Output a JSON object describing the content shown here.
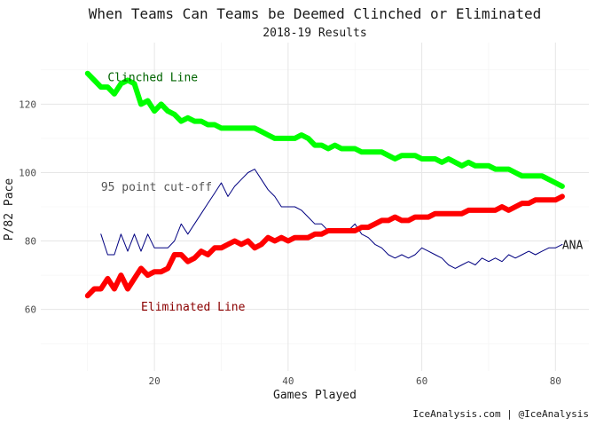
{
  "chart_data": {
    "type": "line",
    "title": "When Teams Can Teams be Deemed Clinched or Eliminated",
    "subtitle": "2018-19 Results",
    "xlabel": "Games Played",
    "ylabel": "P/82 Pace",
    "caption": "IceAnalysis.com | @IceAnalysis",
    "xlim": [
      3,
      85
    ],
    "ylim": [
      42,
      138
    ],
    "xticks": [
      20,
      40,
      60,
      80
    ],
    "yticks": [
      60,
      80,
      100,
      120
    ],
    "grid": true,
    "annotations": [
      {
        "text": "Clinched Line",
        "x": 13,
        "y": 128,
        "color": "#006400"
      },
      {
        "text": "95 point cut-off",
        "x": 12,
        "y": 96,
        "color": "#555555"
      },
      {
        "text": "Eliminated Line",
        "x": 18,
        "y": 61,
        "color": "#8b0000"
      },
      {
        "text": "ANA",
        "x": 81,
        "y": 79,
        "color": "#1a1a1a"
      }
    ],
    "series": [
      {
        "color": "#00ff00",
        "x": [
          10,
          11,
          12,
          13,
          14,
          15,
          16,
          17,
          18,
          19,
          20,
          21,
          22,
          23,
          24,
          25,
          26,
          27,
          28,
          29,
          30,
          31,
          32,
          33,
          34,
          35,
          36,
          37,
          38,
          39,
          40,
          41,
          42,
          43,
          44,
          45,
          46,
          47,
          48,
          49,
          50,
          51,
          52,
          53,
          54,
          55,
          56,
          57,
          58,
          59,
          60,
          61,
          62,
          63,
          64,
          65,
          66,
          67,
          68,
          69,
          70,
          71,
          72,
          73,
          74,
          75,
          76,
          77,
          78,
          79,
          80,
          81
        ],
        "values": [
          129,
          127,
          125,
          125,
          123,
          126,
          127,
          126,
          120,
          121,
          118,
          120,
          118,
          117,
          115,
          116,
          115,
          115,
          114,
          114,
          113,
          113,
          113,
          113,
          113,
          113,
          112,
          111,
          110,
          110,
          110,
          110,
          111,
          110,
          108,
          108,
          107,
          108,
          107,
          107,
          107,
          106,
          106,
          106,
          106,
          105,
          104,
          105,
          105,
          105,
          104,
          104,
          104,
          103,
          104,
          103,
          102,
          103,
          102,
          102,
          102,
          101,
          101,
          101,
          100,
          99,
          99,
          99,
          99,
          98,
          97,
          96
        ]
      },
      {
        "color": "#000080",
        "x": [
          12,
          13,
          14,
          15,
          16,
          17,
          18,
          19,
          20,
          21,
          22,
          23,
          24,
          25,
          26,
          27,
          28,
          29,
          30,
          31,
          32,
          33,
          34,
          35,
          36,
          37,
          38,
          39,
          40,
          41,
          42,
          43,
          44,
          45,
          46,
          47,
          48,
          49,
          50,
          51,
          52,
          53,
          54,
          55,
          56,
          57,
          58,
          59,
          60,
          61,
          62,
          63,
          64,
          65,
          66,
          67,
          68,
          69,
          70,
          71,
          72,
          73,
          74,
          75,
          76,
          77,
          78,
          79,
          80,
          81
        ],
        "values": [
          82,
          76,
          76,
          82,
          77,
          82,
          77,
          82,
          78,
          78,
          78,
          80,
          85,
          82,
          85,
          88,
          91,
          94,
          97,
          93,
          96,
          98,
          100,
          101,
          98,
          95,
          93,
          90,
          90,
          90,
          89,
          87,
          85,
          85,
          83,
          83,
          83,
          83,
          85,
          82,
          81,
          79,
          78,
          76,
          75,
          76,
          75,
          76,
          78,
          77,
          76,
          75,
          73,
          72,
          73,
          74,
          73,
          75,
          74,
          75,
          74,
          76,
          75,
          76,
          77,
          76,
          77,
          78,
          78,
          79
        ]
      },
      {
        "color": "#ff0000",
        "x": [
          10,
          11,
          12,
          13,
          14,
          15,
          16,
          17,
          18,
          19,
          20,
          21,
          22,
          23,
          24,
          25,
          26,
          27,
          28,
          29,
          30,
          31,
          32,
          33,
          34,
          35,
          36,
          37,
          38,
          39,
          40,
          41,
          42,
          43,
          44,
          45,
          46,
          47,
          48,
          49,
          50,
          51,
          52,
          53,
          54,
          55,
          56,
          57,
          58,
          59,
          60,
          61,
          62,
          63,
          64,
          65,
          66,
          67,
          68,
          69,
          70,
          71,
          72,
          73,
          74,
          75,
          76,
          77,
          78,
          79,
          80,
          81
        ],
        "values": [
          64,
          66,
          66,
          69,
          66,
          70,
          66,
          69,
          72,
          70,
          71,
          71,
          72,
          76,
          76,
          74,
          75,
          77,
          76,
          78,
          78,
          79,
          80,
          79,
          80,
          78,
          79,
          81,
          80,
          81,
          80,
          81,
          81,
          81,
          82,
          82,
          83,
          83,
          83,
          83,
          83,
          84,
          84,
          85,
          86,
          86,
          87,
          86,
          86,
          87,
          87,
          87,
          88,
          88,
          88,
          88,
          88,
          89,
          89,
          89,
          89,
          89,
          90,
          89,
          90,
          91,
          91,
          92,
          92,
          92,
          92,
          93
        ]
      }
    ]
  }
}
